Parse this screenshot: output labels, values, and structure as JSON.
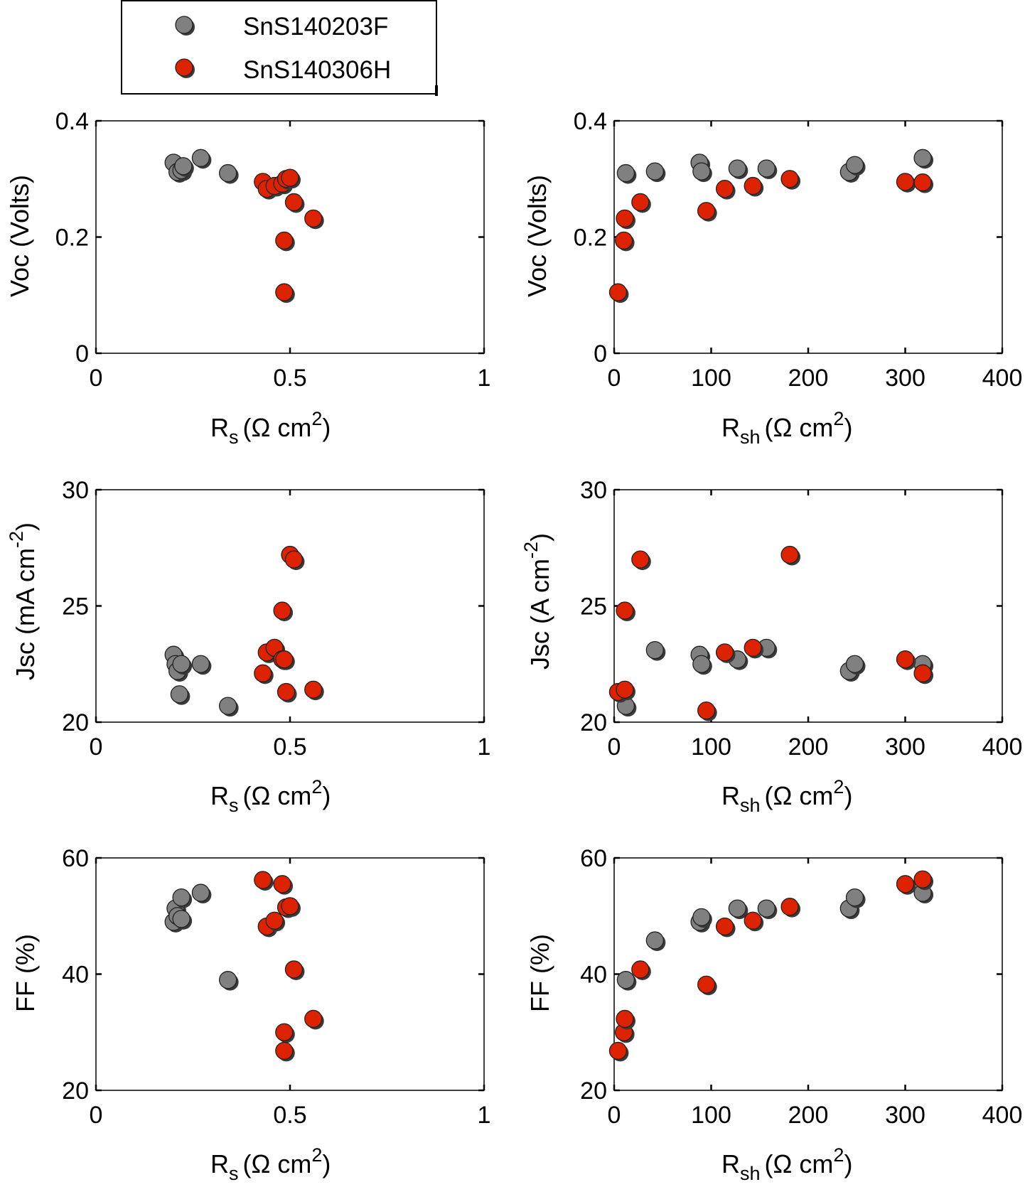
{
  "legend": {
    "entries": [
      {
        "label": "SnS140203F",
        "color": "#808080"
      },
      {
        "label": "SnS140306H",
        "color": "#dd2200"
      }
    ]
  },
  "series_colors": {
    "SnS140203F": "#808080",
    "SnS140306H": "#dd2200",
    "marker_edge": "#222222",
    "marker_shadow": "#3a3a3a"
  },
  "axis_labels": {
    "rs": {
      "main": "R",
      "sub": "s",
      "unit": "(Ω cm",
      "sup": "2",
      "close": ")"
    },
    "rsh": {
      "main": "R",
      "sub": "sh",
      "unit": "(Ω cm",
      "sup": "2",
      "close": ")"
    },
    "voc": "Voc (Volts)",
    "jsc_left": {
      "text": "Jsc (mA cm",
      "sup": "-2",
      "close": ")"
    },
    "jsc_right": {
      "text": "Jsc (A cm",
      "sup": "-2",
      "close": ")"
    },
    "ff": "FF (%)"
  },
  "chart_data": [
    {
      "id": "voc-vs-rs",
      "type": "scatter",
      "xlabel": "Rs (Ω cm2)",
      "ylabel": "Voc (Volts)",
      "xlim": [
        0,
        1
      ],
      "ylim": [
        0,
        0.4
      ],
      "xticks": [
        "0",
        "0.5",
        "1"
      ],
      "yticks": [
        "0",
        "0.2",
        "0.4"
      ],
      "series": [
        {
          "name": "SnS140203F",
          "x": [
            0.2,
            0.21,
            0.22,
            0.225,
            0.27,
            0.34
          ],
          "y": [
            0.328,
            0.312,
            0.315,
            0.322,
            0.336,
            0.31
          ]
        },
        {
          "name": "SnS140306H",
          "x": [
            0.43,
            0.44,
            0.46,
            0.48,
            0.49,
            0.5,
            0.51,
            0.56,
            0.485,
            0.485
          ],
          "y": [
            0.295,
            0.283,
            0.288,
            0.292,
            0.3,
            0.302,
            0.26,
            0.232,
            0.194,
            0.105
          ]
        }
      ]
    },
    {
      "id": "voc-vs-rsh",
      "type": "scatter",
      "xlabel": "Rsh (Ω cm2)",
      "ylabel": "Voc (Volts)",
      "xlim": [
        0,
        400
      ],
      "ylim": [
        0,
        0.4
      ],
      "xticks": [
        "0",
        "100",
        "200",
        "300",
        "400"
      ],
      "yticks": [
        "0",
        "0.2",
        "0.4"
      ],
      "series": [
        {
          "name": "SnS140203F",
          "x": [
            12,
            42,
            88,
            90,
            127,
            157,
            242,
            248,
            318
          ],
          "y": [
            0.31,
            0.313,
            0.328,
            0.313,
            0.318,
            0.318,
            0.312,
            0.324,
            0.336
          ]
        },
        {
          "name": "SnS140306H",
          "x": [
            4,
            10,
            11,
            27,
            95,
            114,
            143,
            181,
            300,
            318
          ],
          "y": [
            0.105,
            0.194,
            0.232,
            0.26,
            0.245,
            0.283,
            0.288,
            0.3,
            0.295,
            0.294
          ]
        }
      ]
    },
    {
      "id": "jsc-vs-rs",
      "type": "scatter",
      "xlabel": "Rs (Ω cm2)",
      "ylabel": "Jsc (mA cm-2)",
      "xlim": [
        0,
        1
      ],
      "ylim": [
        20,
        30
      ],
      "xticks": [
        "0",
        "0.5",
        "1"
      ],
      "yticks": [
        "20",
        "25",
        "30"
      ],
      "series": [
        {
          "name": "SnS140203F",
          "x": [
            0.2,
            0.205,
            0.21,
            0.22,
            0.215,
            0.27,
            0.34
          ],
          "y": [
            22.9,
            22.5,
            22.2,
            22.5,
            21.2,
            22.5,
            20.7
          ]
        },
        {
          "name": "SnS140306H",
          "x": [
            0.43,
            0.44,
            0.46,
            0.48,
            0.48,
            0.49,
            0.5,
            0.51,
            0.485,
            0.56
          ],
          "y": [
            22.1,
            23.0,
            23.2,
            22.7,
            24.8,
            21.3,
            27.2,
            27.0,
            22.7,
            21.4
          ]
        }
      ]
    },
    {
      "id": "jsc-vs-rsh",
      "type": "scatter",
      "xlabel": "Rsh (Ω cm2)",
      "ylabel": "Jsc (A cm-2)",
      "xlim": [
        0,
        400
      ],
      "ylim": [
        20,
        30
      ],
      "xticks": [
        "0",
        "100",
        "200",
        "300",
        "400"
      ],
      "yticks": [
        "20",
        "25",
        "30"
      ],
      "series": [
        {
          "name": "SnS140203F",
          "x": [
            12,
            42,
            88,
            90,
            127,
            157,
            242,
            248,
            318
          ],
          "y": [
            20.7,
            23.1,
            22.9,
            22.5,
            22.7,
            23.2,
            22.2,
            22.5,
            22.5
          ]
        },
        {
          "name": "SnS140306H",
          "x": [
            4,
            11,
            11,
            27,
            95,
            114,
            143,
            181,
            300,
            318
          ],
          "y": [
            21.3,
            21.4,
            24.8,
            27.0,
            20.5,
            23.0,
            23.2,
            27.2,
            22.7,
            22.1
          ]
        }
      ]
    },
    {
      "id": "ff-vs-rs",
      "type": "scatter",
      "xlabel": "Rs (Ω cm2)",
      "ylabel": "FF (%)",
      "xlim": [
        0,
        1
      ],
      "ylim": [
        20,
        60
      ],
      "xticks": [
        "0",
        "0.5",
        "1"
      ],
      "yticks": [
        "20",
        "40",
        "60"
      ],
      "series": [
        {
          "name": "SnS140203F",
          "x": [
            0.2,
            0.205,
            0.21,
            0.22,
            0.22,
            0.27,
            0.34
          ],
          "y": [
            49,
            51.3,
            50,
            49.5,
            53.2,
            54,
            39
          ]
        },
        {
          "name": "SnS140306H",
          "x": [
            0.43,
            0.44,
            0.46,
            0.48,
            0.49,
            0.5,
            0.51,
            0.56,
            0.485,
            0.485
          ],
          "y": [
            56.2,
            48.2,
            49.2,
            55.5,
            51.5,
            51.7,
            40.8,
            32.3,
            30,
            26.8
          ]
        }
      ]
    },
    {
      "id": "ff-vs-rsh",
      "type": "scatter",
      "xlabel": "Rsh (Ω cm2)",
      "ylabel": "FF (%)",
      "xlim": [
        0,
        400
      ],
      "ylim": [
        20,
        60
      ],
      "xticks": [
        "0",
        "100",
        "200",
        "300",
        "400"
      ],
      "yticks": [
        "20",
        "40",
        "60"
      ],
      "series": [
        {
          "name": "SnS140203F",
          "x": [
            12,
            42,
            88,
            90,
            127,
            157,
            242,
            248,
            318
          ],
          "y": [
            39,
            45.8,
            49,
            49.8,
            51.3,
            51.3,
            51.3,
            53.2,
            54
          ]
        },
        {
          "name": "SnS140306H",
          "x": [
            4,
            10,
            11,
            27,
            95,
            114,
            143,
            181,
            300,
            318
          ],
          "y": [
            26.8,
            30,
            32.3,
            40.8,
            38.2,
            48.2,
            49.2,
            51.6,
            55.5,
            56.3
          ]
        }
      ]
    }
  ]
}
